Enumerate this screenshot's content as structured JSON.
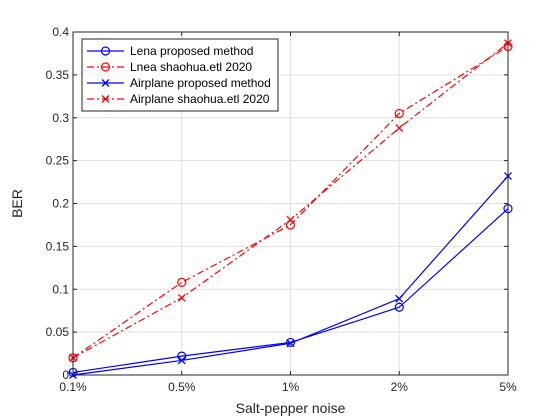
{
  "chart_data": {
    "type": "line",
    "title": "",
    "xlabel": "Salt-pepper noise",
    "ylabel": "BER",
    "categories": [
      "0.1%",
      "0.5%",
      "1%",
      "2%",
      "5%"
    ],
    "ylim": [
      0,
      0.4
    ],
    "yticks": [
      0,
      0.05,
      0.1,
      0.15,
      0.2,
      0.25,
      0.3,
      0.35,
      0.4
    ],
    "ytick_labels": [
      "0",
      "0.05",
      "0.1",
      "0.15",
      "0.2",
      "0.25",
      "0.3",
      "0.35",
      "0.4"
    ],
    "grid": true,
    "legend_position": "top-left",
    "series": [
      {
        "name": "Lena proposed method",
        "values": [
          0.003,
          0.022,
          0.038,
          0.079,
          0.194
        ],
        "color": "#0000ff",
        "line": "solid",
        "marker": "circle"
      },
      {
        "name": "Lnea shaohua.etl 2020",
        "values": [
          0.02,
          0.108,
          0.175,
          0.305,
          0.383
        ],
        "color": "#ff0000",
        "line": "dashdot",
        "marker": "circle"
      },
      {
        "name": "Airplane proposed method",
        "values": [
          0.0,
          0.017,
          0.037,
          0.089,
          0.232
        ],
        "color": "#0000ff",
        "line": "solid",
        "marker": "x"
      },
      {
        "name": "Airplane shaohua.etl 2020",
        "values": [
          0.02,
          0.09,
          0.181,
          0.288,
          0.387
        ],
        "color": "#ff0000",
        "line": "dashdot",
        "marker": "x"
      }
    ]
  }
}
